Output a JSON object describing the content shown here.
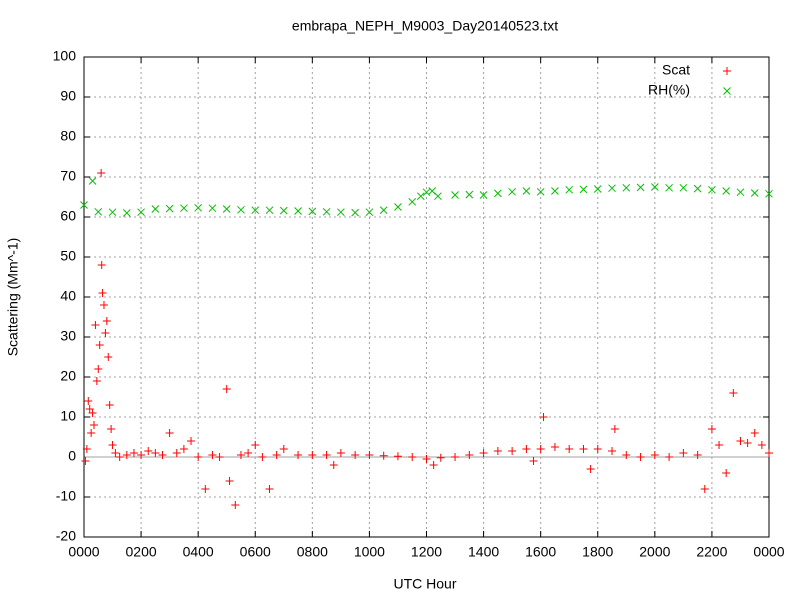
{
  "chart_data": {
    "type": "scatter",
    "title": "embrapa_NEPH_M9003_Day20140523.txt",
    "x_label": "UTC Hour",
    "y_label": "Scattering (Mm^-1)",
    "xlim": [
      0,
      24
    ],
    "ylim": [
      -20,
      100
    ],
    "xticks": [
      {
        "value": 0,
        "label": "0000"
      },
      {
        "value": 2,
        "label": "0200"
      },
      {
        "value": 4,
        "label": "0400"
      },
      {
        "value": 6,
        "label": "0600"
      },
      {
        "value": 8,
        "label": "0800"
      },
      {
        "value": 10,
        "label": "1000"
      },
      {
        "value": 12,
        "label": "1200"
      },
      {
        "value": 14,
        "label": "1400"
      },
      {
        "value": 16,
        "label": "1600"
      },
      {
        "value": 18,
        "label": "1800"
      },
      {
        "value": 20,
        "label": "2000"
      },
      {
        "value": 22,
        "label": "2200"
      },
      {
        "value": 24,
        "label": "0000"
      }
    ],
    "yticks": [
      -20,
      -10,
      0,
      10,
      20,
      30,
      40,
      50,
      60,
      70,
      80,
      90,
      100
    ],
    "grid": true,
    "legend": "top-right",
    "series": [
      {
        "name": "Scat",
        "color": "#ff0000",
        "marker": "plus",
        "x": [
          0.05,
          0.1,
          0.15,
          0.2,
          0.25,
          0.3,
          0.35,
          0.4,
          0.45,
          0.5,
          0.55,
          0.6,
          0.62,
          0.65,
          0.7,
          0.75,
          0.8,
          0.85,
          0.9,
          0.95,
          1.0,
          1.1,
          1.25,
          1.5,
          1.75,
          2.0,
          2.25,
          2.5,
          2.75,
          3.0,
          3.25,
          3.5,
          3.75,
          4.0,
          4.25,
          4.5,
          4.75,
          5.0,
          5.1,
          5.3,
          5.5,
          5.75,
          6.0,
          6.25,
          6.5,
          6.75,
          7.0,
          7.5,
          8.0,
          8.5,
          8.75,
          9.0,
          9.5,
          10.0,
          10.5,
          11.0,
          11.5,
          12.0,
          12.25,
          12.5,
          13.0,
          13.5,
          14.0,
          14.5,
          15.0,
          15.5,
          15.75,
          16.0,
          16.1,
          16.5,
          17.0,
          17.5,
          17.75,
          18.0,
          18.5,
          18.6,
          19.0,
          19.5,
          20.0,
          20.5,
          21.0,
          21.5,
          21.75,
          22.0,
          22.25,
          22.5,
          22.75,
          23.0,
          23.25,
          23.5,
          23.75,
          24.0
        ],
        "values": [
          -1,
          2,
          14,
          12,
          6,
          11,
          8,
          33,
          19,
          22,
          28,
          71,
          48,
          41,
          38,
          31,
          34,
          25,
          13,
          7,
          3,
          1,
          0,
          0.5,
          1,
          0.5,
          1.5,
          1,
          0.5,
          6,
          1,
          2,
          4,
          0,
          -8,
          0.5,
          0,
          17,
          -6,
          -12,
          0.5,
          1,
          3,
          0,
          -8,
          0.5,
          2,
          0.5,
          0.5,
          0.5,
          -2,
          1,
          0.5,
          0.5,
          0.3,
          0.2,
          0,
          -0.5,
          -2,
          -0.2,
          0,
          0.5,
          1,
          1.5,
          1.5,
          2,
          -1,
          2,
          10,
          2.5,
          2,
          2,
          -3,
          2,
          1.5,
          7,
          0.5,
          0,
          0.5,
          0,
          1,
          0.5,
          -8,
          7,
          3,
          -4,
          16,
          4,
          3.5,
          6,
          3,
          1
        ]
      },
      {
        "name": "RH(%)",
        "color": "#00c000",
        "marker": "cross",
        "x": [
          0.0,
          0.3,
          0.5,
          1.0,
          1.5,
          2.0,
          2.5,
          3.0,
          3.5,
          4.0,
          4.5,
          5.0,
          5.5,
          6.0,
          6.5,
          7.0,
          7.5,
          8.0,
          8.5,
          9.0,
          9.5,
          10.0,
          10.5,
          11.0,
          11.5,
          11.8,
          12.0,
          12.2,
          12.4,
          13.0,
          13.5,
          14.0,
          14.5,
          15.0,
          15.5,
          16.0,
          16.5,
          17.0,
          17.5,
          18.0,
          18.5,
          19.0,
          19.5,
          20.0,
          20.5,
          21.0,
          21.5,
          22.0,
          22.5,
          23.0,
          23.5,
          24.0
        ],
        "values": [
          63,
          69,
          61.3,
          61.2,
          61,
          61.2,
          62,
          62.1,
          62.2,
          62.3,
          62.2,
          62,
          61.8,
          61.7,
          61.7,
          61.6,
          61.5,
          61.4,
          61.3,
          61.2,
          61.1,
          61.2,
          61.7,
          62.5,
          63.8,
          65.2,
          66.2,
          66.5,
          65.2,
          65.5,
          65.6,
          65.5,
          65.9,
          66.3,
          66.5,
          66.3,
          66.5,
          66.8,
          66.9,
          67,
          67.2,
          67.3,
          67.4,
          67.5,
          67.3,
          67.3,
          67.1,
          66.8,
          66.5,
          66.2,
          66,
          65.8
        ]
      }
    ]
  }
}
